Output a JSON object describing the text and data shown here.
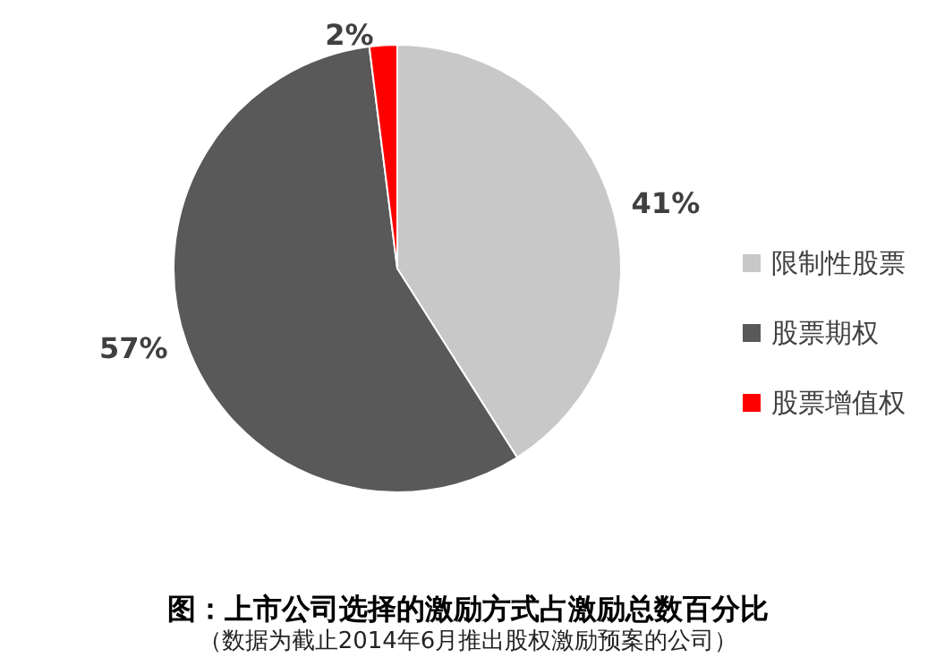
{
  "chart_data": {
    "type": "pie",
    "title": "图：上市公司选择的激励方式占激励总数百分比",
    "subtitle": "（数据为截止2014年6月推出股权激励预案的公司）",
    "categories": [
      "限制性股票",
      "股票期权",
      "股票增值权"
    ],
    "values": [
      41,
      57,
      2
    ],
    "colors": [
      "#c8c8c8",
      "#595959",
      "#ff0000"
    ],
    "value_labels": [
      "41%",
      "57%",
      "2%"
    ],
    "legend": "right"
  }
}
